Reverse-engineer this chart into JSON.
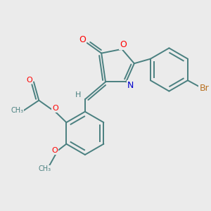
{
  "bg_color": "#ebebeb",
  "bond_color": "#4a8080",
  "bond_width": 1.4,
  "atom_colors": {
    "O": "#ff0000",
    "N": "#0000cc",
    "Br": "#b87020",
    "H": "#4a8080",
    "C": "#4a8080"
  },
  "font_size": 9
}
